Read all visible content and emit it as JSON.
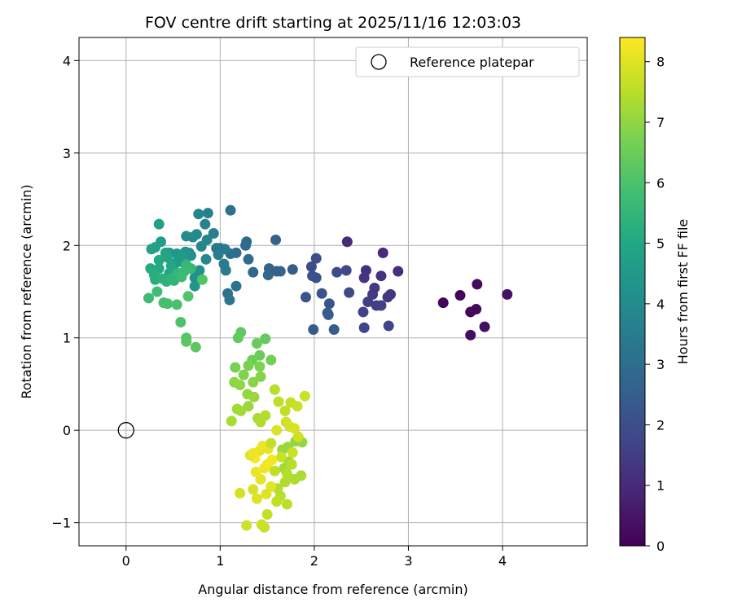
{
  "chart_data": {
    "type": "scatter",
    "title": "FOV centre drift starting at 2025/11/16 12:03:03",
    "xlabel": "Angular distance from reference (arcmin)",
    "ylabel": "Rotation from reference (arcmin)",
    "xlim": [
      -0.5,
      4.9
    ],
    "ylim": [
      -1.25,
      4.25
    ],
    "xticks": [
      0,
      1,
      2,
      3,
      4
    ],
    "yticks": [
      -1,
      0,
      1,
      2,
      3,
      4
    ],
    "grid": true,
    "legend": {
      "position": "top-right",
      "entries": [
        "Reference platepar"
      ]
    },
    "reference_point": {
      "x": 0,
      "y": 0,
      "label": "Reference platepar"
    },
    "colorbar": {
      "label": "Hours from first FF file",
      "range": [
        0,
        8.4
      ],
      "ticks": [
        0,
        1,
        2,
        3,
        4,
        5,
        6,
        7,
        8
      ],
      "colormap": "viridis"
    },
    "series": [
      {
        "values": [
          {
            "x": 3.37,
            "y": 1.38,
            "c": 0.05
          },
          {
            "x": 3.55,
            "y": 1.46,
            "c": 0.1
          },
          {
            "x": 3.66,
            "y": 1.28,
            "c": 0.15
          },
          {
            "x": 3.72,
            "y": 1.31,
            "c": 0.2
          },
          {
            "x": 3.73,
            "y": 1.58,
            "c": 0.25
          },
          {
            "x": 3.66,
            "y": 1.03,
            "c": 0.3
          },
          {
            "x": 3.81,
            "y": 1.12,
            "c": 0.35
          },
          {
            "x": 4.05,
            "y": 1.47,
            "c": 0.4
          },
          {
            "x": 2.35,
            "y": 2.04,
            "c": 1.0
          },
          {
            "x": 2.73,
            "y": 1.92,
            "c": 1.05
          },
          {
            "x": 2.89,
            "y": 1.72,
            "c": 1.1
          },
          {
            "x": 2.55,
            "y": 1.73,
            "c": 1.15
          },
          {
            "x": 2.71,
            "y": 1.67,
            "c": 1.2
          },
          {
            "x": 2.53,
            "y": 1.65,
            "c": 1.25
          },
          {
            "x": 2.78,
            "y": 1.44,
            "c": 1.3
          },
          {
            "x": 2.81,
            "y": 1.47,
            "c": 1.35
          },
          {
            "x": 2.64,
            "y": 1.54,
            "c": 1.4
          },
          {
            "x": 2.62,
            "y": 1.47,
            "c": 1.45
          },
          {
            "x": 2.57,
            "y": 1.39,
            "c": 1.5
          },
          {
            "x": 2.66,
            "y": 1.35,
            "c": 1.55
          },
          {
            "x": 2.71,
            "y": 1.35,
            "c": 1.6
          },
          {
            "x": 2.52,
            "y": 1.28,
            "c": 1.65
          },
          {
            "x": 2.79,
            "y": 1.13,
            "c": 1.7
          },
          {
            "x": 2.53,
            "y": 1.11,
            "c": 1.75
          },
          {
            "x": 2.37,
            "y": 1.49,
            "c": 1.8
          },
          {
            "x": 2.34,
            "y": 1.73,
            "c": 1.85
          },
          {
            "x": 2.24,
            "y": 1.71,
            "c": 1.9
          },
          {
            "x": 2.02,
            "y": 1.86,
            "c": 1.95
          },
          {
            "x": 1.97,
            "y": 1.77,
            "c": 2.0
          },
          {
            "x": 2.02,
            "y": 1.65,
            "c": 2.05
          },
          {
            "x": 1.98,
            "y": 1.67,
            "c": 2.1
          },
          {
            "x": 2.08,
            "y": 1.48,
            "c": 2.15
          },
          {
            "x": 1.91,
            "y": 1.44,
            "c": 2.2
          },
          {
            "x": 2.16,
            "y": 1.37,
            "c": 2.25
          },
          {
            "x": 2.14,
            "y": 1.27,
            "c": 2.3
          },
          {
            "x": 2.15,
            "y": 1.25,
            "c": 2.35
          },
          {
            "x": 1.99,
            "y": 1.09,
            "c": 2.4
          },
          {
            "x": 2.21,
            "y": 1.09,
            "c": 2.45
          },
          {
            "x": 1.77,
            "y": 1.74,
            "c": 2.5
          },
          {
            "x": 1.6,
            "y": 1.72,
            "c": 2.55
          },
          {
            "x": 1.64,
            "y": 1.72,
            "c": 2.6
          },
          {
            "x": 1.59,
            "y": 2.06,
            "c": 2.65
          },
          {
            "x": 1.52,
            "y": 1.75,
            "c": 2.7
          },
          {
            "x": 1.51,
            "y": 1.68,
            "c": 2.75
          },
          {
            "x": 1.35,
            "y": 1.71,
            "c": 2.8
          },
          {
            "x": 1.27,
            "y": 2.0,
            "c": 2.85
          },
          {
            "x": 1.28,
            "y": 2.04,
            "c": 2.9
          },
          {
            "x": 1.3,
            "y": 1.85,
            "c": 2.95
          },
          {
            "x": 1.17,
            "y": 1.92,
            "c": 3.0
          },
          {
            "x": 1.11,
            "y": 1.91,
            "c": 3.05
          },
          {
            "x": 1.11,
            "y": 2.38,
            "c": 3.1
          },
          {
            "x": 1.17,
            "y": 1.56,
            "c": 3.15
          },
          {
            "x": 1.08,
            "y": 1.48,
            "c": 3.2
          },
          {
            "x": 1.1,
            "y": 1.41,
            "c": 3.25
          },
          {
            "x": 1.0,
            "y": 1.97,
            "c": 3.3
          },
          {
            "x": 0.96,
            "y": 1.97,
            "c": 3.35
          },
          {
            "x": 1.05,
            "y": 1.96,
            "c": 3.4
          },
          {
            "x": 1.06,
            "y": 1.73,
            "c": 3.45
          },
          {
            "x": 1.04,
            "y": 1.8,
            "c": 3.5
          },
          {
            "x": 0.98,
            "y": 1.9,
            "c": 3.55
          },
          {
            "x": 0.93,
            "y": 2.13,
            "c": 3.6
          },
          {
            "x": 0.87,
            "y": 2.35,
            "c": 3.65
          },
          {
            "x": 0.84,
            "y": 2.23,
            "c": 3.7
          },
          {
            "x": 0.77,
            "y": 2.34,
            "c": 3.75
          },
          {
            "x": 0.86,
            "y": 2.06,
            "c": 3.8
          },
          {
            "x": 0.8,
            "y": 1.99,
            "c": 3.85
          },
          {
            "x": 0.85,
            "y": 1.85,
            "c": 3.9
          },
          {
            "x": 0.75,
            "y": 2.12,
            "c": 3.95
          },
          {
            "x": 0.71,
            "y": 2.09,
            "c": 4.0
          },
          {
            "x": 0.64,
            "y": 2.1,
            "c": 4.05
          },
          {
            "x": 0.67,
            "y": 1.92,
            "c": 4.1
          },
          {
            "x": 0.69,
            "y": 1.89,
            "c": 4.15
          },
          {
            "x": 0.78,
            "y": 1.73,
            "c": 4.2
          },
          {
            "x": 0.73,
            "y": 1.65,
            "c": 4.25
          },
          {
            "x": 0.73,
            "y": 1.56,
            "c": 4.3
          },
          {
            "x": 0.63,
            "y": 1.93,
            "c": 4.35
          },
          {
            "x": 0.54,
            "y": 1.91,
            "c": 4.4
          },
          {
            "x": 0.46,
            "y": 1.92,
            "c": 4.45
          },
          {
            "x": 0.6,
            "y": 1.88,
            "c": 4.5
          },
          {
            "x": 0.6,
            "y": 1.82,
            "c": 4.55
          },
          {
            "x": 0.53,
            "y": 1.81,
            "c": 4.6
          },
          {
            "x": 0.37,
            "y": 2.04,
            "c": 4.65
          },
          {
            "x": 0.35,
            "y": 2.23,
            "c": 4.7
          },
          {
            "x": 0.31,
            "y": 1.98,
            "c": 4.75
          },
          {
            "x": 0.27,
            "y": 1.96,
            "c": 4.8
          },
          {
            "x": 0.42,
            "y": 1.92,
            "c": 4.85
          },
          {
            "x": 0.44,
            "y": 1.87,
            "c": 4.9
          },
          {
            "x": 0.48,
            "y": 1.78,
            "c": 4.95
          },
          {
            "x": 0.46,
            "y": 1.7,
            "c": 5.0
          },
          {
            "x": 0.35,
            "y": 1.84,
            "c": 5.05
          },
          {
            "x": 0.35,
            "y": 1.75,
            "c": 5.1
          },
          {
            "x": 0.26,
            "y": 1.75,
            "c": 5.15
          },
          {
            "x": 0.3,
            "y": 1.68,
            "c": 5.2
          },
          {
            "x": 0.31,
            "y": 1.63,
            "c": 5.25
          },
          {
            "x": 0.39,
            "y": 1.64,
            "c": 5.3
          },
          {
            "x": 0.43,
            "y": 1.61,
            "c": 5.35
          },
          {
            "x": 0.47,
            "y": 1.64,
            "c": 5.4
          },
          {
            "x": 0.51,
            "y": 1.62,
            "c": 5.45
          },
          {
            "x": 0.55,
            "y": 1.7,
            "c": 5.5
          },
          {
            "x": 0.64,
            "y": 1.79,
            "c": 5.55
          },
          {
            "x": 0.69,
            "y": 1.75,
            "c": 5.6
          },
          {
            "x": 0.62,
            "y": 1.72,
            "c": 5.65
          },
          {
            "x": 0.59,
            "y": 1.66,
            "c": 5.7
          },
          {
            "x": 0.24,
            "y": 1.43,
            "c": 5.75
          },
          {
            "x": 0.33,
            "y": 1.5,
            "c": 5.8
          },
          {
            "x": 0.4,
            "y": 1.38,
            "c": 5.85
          },
          {
            "x": 0.44,
            "y": 1.37,
            "c": 5.9
          },
          {
            "x": 0.54,
            "y": 1.36,
            "c": 5.95
          },
          {
            "x": 0.58,
            "y": 1.17,
            "c": 6.0
          },
          {
            "x": 0.66,
            "y": 1.45,
            "c": 6.05
          },
          {
            "x": 0.81,
            "y": 1.63,
            "c": 6.1
          },
          {
            "x": 0.64,
            "y": 1.0,
            "c": 6.15
          },
          {
            "x": 0.64,
            "y": 0.96,
            "c": 6.2
          },
          {
            "x": 0.74,
            "y": 0.9,
            "c": 6.25
          },
          {
            "x": 1.22,
            "y": 1.06,
            "c": 6.3
          },
          {
            "x": 1.19,
            "y": 1.0,
            "c": 6.35
          },
          {
            "x": 1.48,
            "y": 0.99,
            "c": 6.4
          },
          {
            "x": 1.39,
            "y": 0.94,
            "c": 6.45
          },
          {
            "x": 1.42,
            "y": 0.81,
            "c": 6.5
          },
          {
            "x": 1.34,
            "y": 0.76,
            "c": 6.55
          },
          {
            "x": 1.54,
            "y": 0.76,
            "c": 6.6
          },
          {
            "x": 1.16,
            "y": 0.68,
            "c": 6.65
          },
          {
            "x": 1.3,
            "y": 0.7,
            "c": 6.7
          },
          {
            "x": 1.42,
            "y": 0.69,
            "c": 6.75
          },
          {
            "x": 1.25,
            "y": 0.6,
            "c": 6.8
          },
          {
            "x": 1.43,
            "y": 0.58,
            "c": 6.85
          },
          {
            "x": 1.35,
            "y": 0.52,
            "c": 6.9
          },
          {
            "x": 1.15,
            "y": 0.52,
            "c": 6.95
          },
          {
            "x": 1.21,
            "y": 0.49,
            "c": 7.0
          },
          {
            "x": 1.29,
            "y": 0.39,
            "c": 7.05
          },
          {
            "x": 1.36,
            "y": 0.36,
            "c": 7.1
          },
          {
            "x": 1.3,
            "y": 0.26,
            "c": 7.15
          },
          {
            "x": 1.18,
            "y": 0.23,
            "c": 7.2
          },
          {
            "x": 1.22,
            "y": 0.21,
            "c": 7.25
          },
          {
            "x": 1.12,
            "y": 0.1,
            "c": 7.3
          },
          {
            "x": 1.4,
            "y": 0.13,
            "c": 7.35
          },
          {
            "x": 1.43,
            "y": 0.09,
            "c": 7.4
          },
          {
            "x": 1.48,
            "y": 0.16,
            "c": 7.45
          },
          {
            "x": 1.58,
            "y": 0.44,
            "c": 7.5
          },
          {
            "x": 1.62,
            "y": 0.31,
            "c": 7.55
          },
          {
            "x": 1.69,
            "y": 0.21,
            "c": 7.6
          },
          {
            "x": 1.75,
            "y": 0.3,
            "c": 7.65
          },
          {
            "x": 1.82,
            "y": 0.26,
            "c": 7.7
          },
          {
            "x": 1.9,
            "y": 0.37,
            "c": 7.75
          },
          {
            "x": 1.7,
            "y": 0.09,
            "c": 7.8
          },
          {
            "x": 1.74,
            "y": 0.04,
            "c": 7.85
          },
          {
            "x": 1.79,
            "y": 0.02,
            "c": 7.9
          },
          {
            "x": 1.6,
            "y": 0.0,
            "c": 7.95
          },
          {
            "x": 1.8,
            "y": -0.12,
            "c": 7.0
          },
          {
            "x": 1.87,
            "y": -0.13,
            "c": 7.05
          },
          {
            "x": 1.72,
            "y": -0.18,
            "c": 7.1
          },
          {
            "x": 1.66,
            "y": -0.21,
            "c": 7.15
          },
          {
            "x": 1.73,
            "y": -0.34,
            "c": 7.2
          },
          {
            "x": 1.68,
            "y": -0.41,
            "c": 7.25
          },
          {
            "x": 1.86,
            "y": -0.49,
            "c": 7.3
          },
          {
            "x": 1.79,
            "y": -0.53,
            "c": 7.35
          },
          {
            "x": 1.69,
            "y": -0.56,
            "c": 7.4
          },
          {
            "x": 1.61,
            "y": -0.63,
            "c": 7.45
          },
          {
            "x": 1.64,
            "y": -0.71,
            "c": 7.5
          },
          {
            "x": 1.71,
            "y": -0.8,
            "c": 7.55
          },
          {
            "x": 1.6,
            "y": -0.77,
            "c": 7.6
          },
          {
            "x": 1.5,
            "y": -0.91,
            "c": 7.65
          },
          {
            "x": 1.47,
            "y": -1.05,
            "c": 7.7
          },
          {
            "x": 1.44,
            "y": -1.02,
            "c": 7.75
          },
          {
            "x": 1.28,
            "y": -1.03,
            "c": 7.8
          },
          {
            "x": 1.21,
            "y": -0.68,
            "c": 7.85
          },
          {
            "x": 1.35,
            "y": -0.64,
            "c": 7.9
          },
          {
            "x": 1.39,
            "y": -0.74,
            "c": 7.95
          },
          {
            "x": 1.49,
            "y": -0.69,
            "c": 8.0
          },
          {
            "x": 1.54,
            "y": -0.61,
            "c": 8.05
          },
          {
            "x": 1.43,
            "y": -0.53,
            "c": 8.1
          },
          {
            "x": 1.38,
            "y": -0.45,
            "c": 8.15
          },
          {
            "x": 1.47,
            "y": -0.41,
            "c": 8.2
          },
          {
            "x": 1.5,
            "y": -0.37,
            "c": 8.25
          },
          {
            "x": 1.55,
            "y": -0.32,
            "c": 8.3
          },
          {
            "x": 1.37,
            "y": -0.3,
            "c": 8.35
          },
          {
            "x": 1.32,
            "y": -0.27,
            "c": 8.0
          },
          {
            "x": 1.42,
            "y": -0.22,
            "c": 8.05
          },
          {
            "x": 1.51,
            "y": -0.2,
            "c": 8.1
          },
          {
            "x": 1.45,
            "y": -0.17,
            "c": 8.15
          },
          {
            "x": 1.35,
            "y": -0.25,
            "c": 8.2
          },
          {
            "x": 1.58,
            "y": -0.44,
            "c": 7.6
          },
          {
            "x": 1.65,
            "y": -0.29,
            "c": 7.7
          },
          {
            "x": 1.77,
            "y": -0.24,
            "c": 7.75
          },
          {
            "x": 1.83,
            "y": -0.07,
            "c": 7.8
          },
          {
            "x": 1.76,
            "y": -0.37,
            "c": 7.5
          },
          {
            "x": 1.71,
            "y": -0.47,
            "c": 7.45
          },
          {
            "x": 1.54,
            "y": -0.14,
            "c": 7.65
          }
        ]
      }
    ]
  }
}
